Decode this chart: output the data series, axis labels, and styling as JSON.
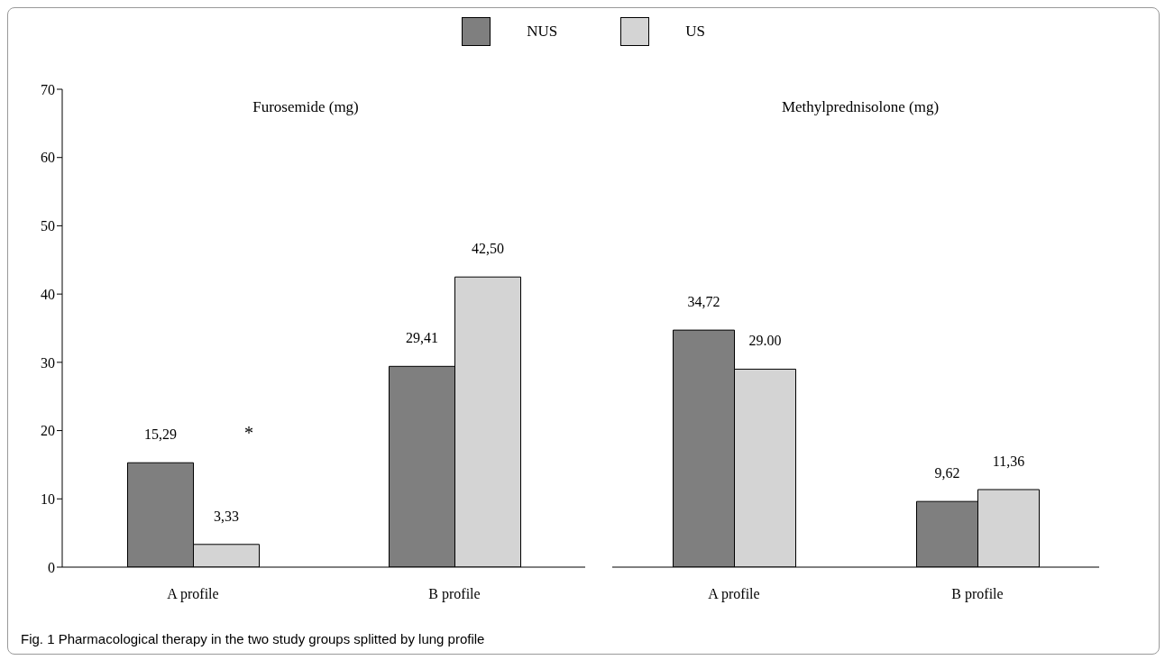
{
  "chart_data": [
    {
      "type": "bar",
      "title": "Furosemide (mg)",
      "categories": [
        "A profile",
        "B profile"
      ],
      "series": [
        {
          "name": "NUS",
          "color": "#7f7f7f",
          "values": [
            15.29,
            29.41
          ],
          "value_labels": [
            "15,29",
            "29,41"
          ]
        },
        {
          "name": "US",
          "color": "#d4d4d4",
          "values": [
            3.33,
            42.5
          ],
          "value_labels": [
            "3,33",
            "42,50"
          ]
        }
      ],
      "ylim": [
        0,
        70
      ],
      "yticks": [
        0,
        10,
        20,
        30,
        40,
        50,
        60,
        70
      ],
      "grid": false,
      "legend": "top",
      "annotations": [
        "*",
        "Fig. 1  Pharmacological therapy in the two study groups splitted by lung profile"
      ]
    },
    {
      "type": "bar",
      "title": "Methylprednisolone (mg)",
      "categories": [
        "A profile",
        "B profile"
      ],
      "series": [
        {
          "color": "#7f7f7f",
          "values": [
            34.72,
            9.62
          ],
          "value_labels": [
            "34,72",
            "9,62"
          ]
        },
        {
          "color": "#d4d4d4",
          "values": [
            29.0,
            11.36
          ],
          "value_labels": [
            "29.00",
            "11,36"
          ]
        }
      ],
      "ylim": [
        0,
        70
      ],
      "yticks": [
        0,
        10,
        20,
        30,
        40,
        50,
        60,
        70
      ],
      "grid": false,
      "tick_labels": "x"
    }
  ]
}
